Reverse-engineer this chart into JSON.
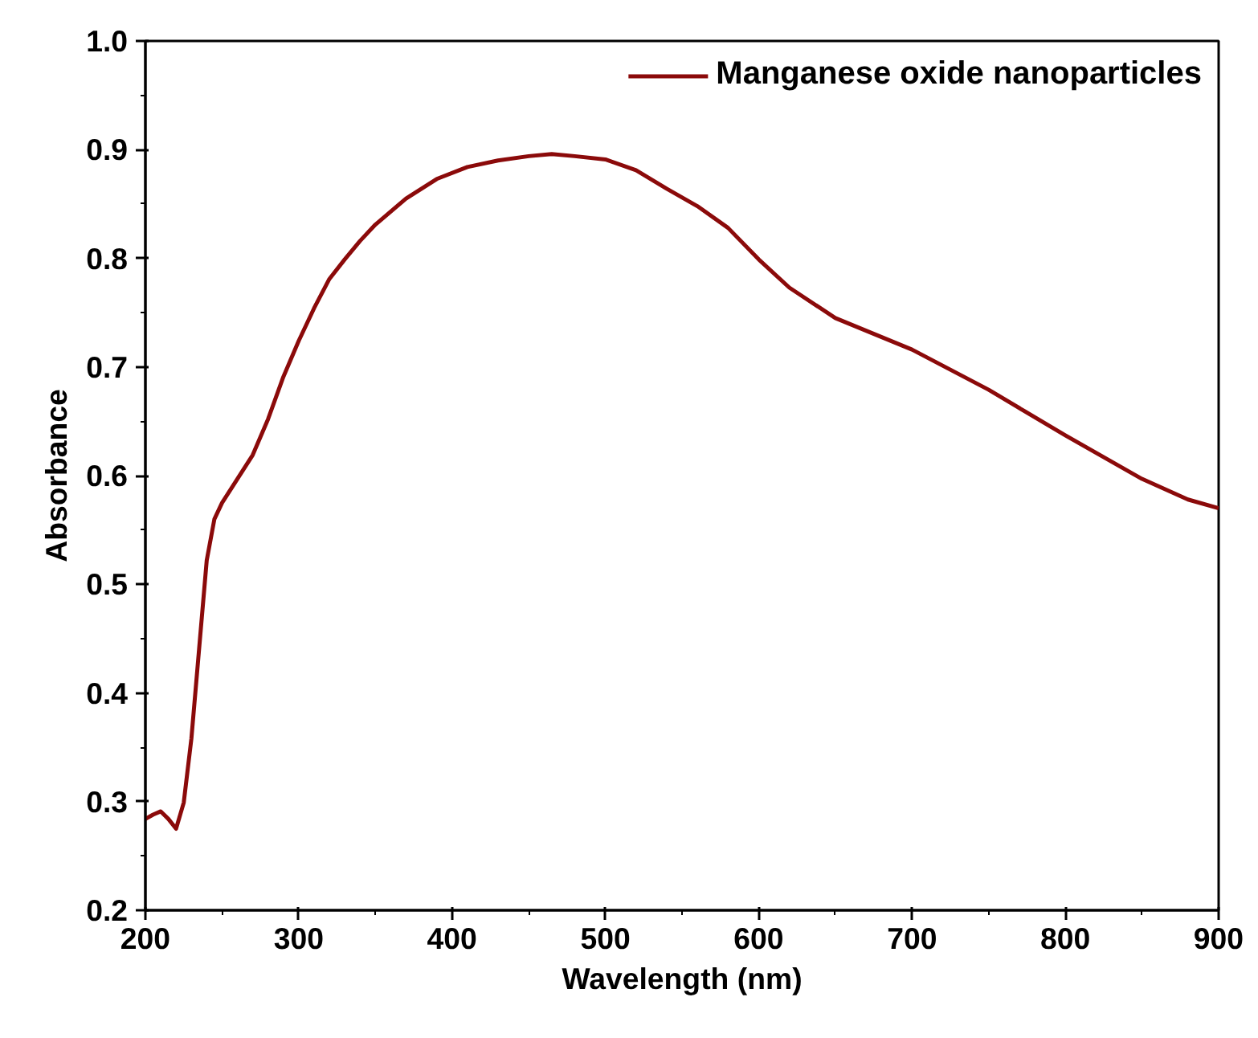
{
  "chart_data": {
    "type": "line",
    "xlabel": "Wavelength (nm)",
    "ylabel": "Absorbance",
    "x": [
      200,
      205,
      210,
      215,
      220,
      225,
      230,
      235,
      240,
      245,
      250,
      260,
      270,
      280,
      290,
      300,
      310,
      320,
      330,
      340,
      350,
      370,
      390,
      410,
      430,
      450,
      465,
      480,
      500,
      520,
      540,
      560,
      580,
      600,
      620,
      650,
      700,
      750,
      800,
      850,
      880,
      900
    ],
    "series": [
      {
        "name": "Manganese oxide nanoparticles",
        "color": "#8b0a0a",
        "values": [
          0.284,
          0.288,
          0.291,
          0.284,
          0.275,
          0.299,
          0.358,
          0.44,
          0.522,
          0.56,
          0.575,
          0.597,
          0.619,
          0.652,
          0.691,
          0.724,
          0.754,
          0.781,
          0.799,
          0.816,
          0.831,
          0.855,
          0.873,
          0.884,
          0.89,
          0.894,
          0.896,
          0.894,
          0.891,
          0.881,
          0.864,
          0.848,
          0.828,
          0.799,
          0.773,
          0.745,
          0.716,
          0.679,
          0.637,
          0.597,
          0.578,
          0.57
        ]
      }
    ],
    "xlim": [
      200,
      900
    ],
    "ylim": [
      0.2,
      1.0
    ],
    "xticks": [
      200,
      300,
      400,
      500,
      600,
      700,
      800,
      900
    ],
    "yticks": [
      0.2,
      0.3,
      0.4,
      0.5,
      0.6,
      0.7,
      0.8,
      0.9,
      {
        "value": 1.0,
        "label": "1.0"
      }
    ],
    "legend": "top right",
    "grid": false,
    "marker": "none",
    "line_style": "solid"
  }
}
